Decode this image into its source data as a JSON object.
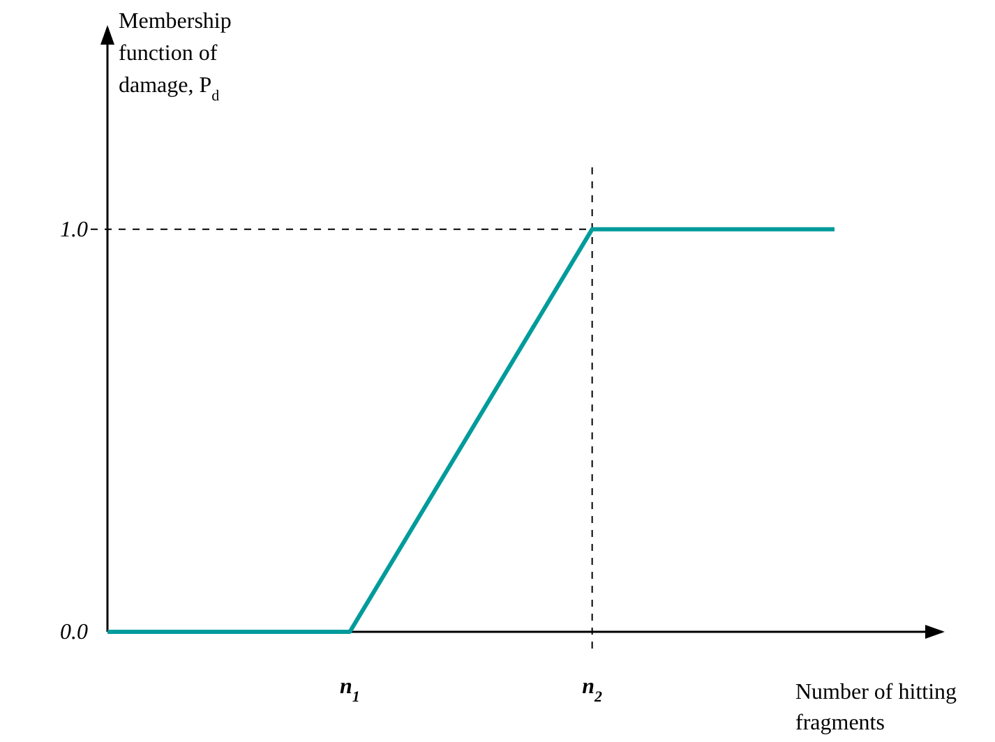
{
  "chart_data": {
    "type": "line",
    "ylabel": "Membership function of damage, P$_{d}$",
    "xlabel": "Number of hitting fragments",
    "categories": [
      null,
      "n$_{1}$",
      "n$_{2}$",
      null
    ],
    "series": [
      {
        "color": "#009b9b",
        "values": [
          0,
          0,
          1,
          1
        ]
      }
    ],
    "ylim": [
      0,
      1.5
    ],
    "yticks": [
      {
        "value": 0,
        "label": "0.0"
      },
      {
        "value": 1,
        "label": "1.0"
      }
    ],
    "ref_lines": [
      {
        "axis": "y",
        "value": 1,
        "line_style": "dashed"
      },
      {
        "axis": "x",
        "value": "n$_{2}$",
        "line_style": "dashed"
      }
    ],
    "line_style": "solid"
  }
}
